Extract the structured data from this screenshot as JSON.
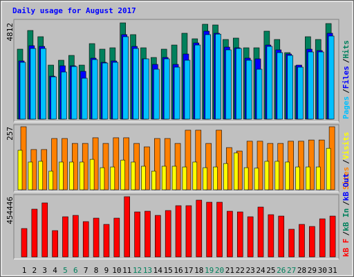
{
  "chart_data": [
    {
      "type": "bar",
      "title": "Daily usage for August 2017",
      "title_color": "#0000ff",
      "ylim": [
        0,
        4812
      ],
      "yticks": [
        4812
      ],
      "series": [
        {
          "name": "Pages",
          "color": "#00c0ff",
          "values": [
            2839,
            3531,
            3531,
            2112,
            2354,
            2631,
            2043,
            2977,
            2804,
            2839,
            4120,
            3531,
            3012,
            2493,
            3012,
            2597,
            2943,
            3704,
            4224,
            4250,
            3462,
            3531,
            2943,
            2493,
            3635,
            3324,
            3185,
            2597,
            3358,
            3358,
            4154
          ]
        },
        {
          "name": "Files",
          "color": "#0000ff",
          "values": [
            2908,
            3670,
            3635,
            2146,
            2666,
            2666,
            2389,
            3047,
            2839,
            2908,
            4224,
            3635,
            3012,
            2735,
            3081,
            2735,
            3254,
            3808,
            4397,
            4293,
            3600,
            3566,
            3047,
            3012,
            3704,
            3462,
            3254,
            2700,
            3497,
            3427,
            4293
          ]
        },
        {
          "name": "Hits",
          "color": "#00805c",
          "values": [
            3497,
            4431,
            4120,
            2700,
            2943,
            3185,
            2700,
            3774,
            3497,
            3566,
            4812,
            4224,
            3566,
            3081,
            3497,
            3704,
            4293,
            4016,
            4743,
            4708,
            3981,
            4051,
            3566,
            3566,
            4397,
            3981,
            3324,
            2666,
            4120,
            3981,
            4778
          ]
        }
      ],
      "legend_separator": "/"
    },
    {
      "type": "bar",
      "ylim": [
        0,
        257
      ],
      "yticks": [
        257
      ],
      "series": [
        {
          "name": "Sites",
          "color": "#ff8000",
          "values": [
            257,
            164,
            164,
            209,
            209,
            189,
            189,
            212,
            189,
            212,
            212,
            189,
            175,
            209,
            209,
            189,
            243,
            243,
            189,
            243,
            172,
            158,
            198,
            198,
            189,
            189,
            198,
            198,
            203,
            203,
            257
          ]
        },
        {
          "name": "Visits",
          "color": "#ffff00",
          "values": [
            161,
            113,
            116,
            76,
            113,
            113,
            113,
            124,
            90,
            93,
            121,
            113,
            96,
            76,
            96,
            96,
            93,
            113,
            90,
            93,
            107,
            150,
            90,
            88,
            116,
            116,
            113,
            93,
            93,
            93,
            169
          ]
        }
      ],
      "legend_separator": "/"
    },
    {
      "type": "bar",
      "ylim": [
        0,
        454446
      ],
      "yticks": [
        454446
      ],
      "series": [
        {
          "name": "kB F",
          "color": "#ff0000",
          "values": [
            214164,
            360422,
            407433,
            198493,
            302963,
            313410,
            266399,
            292516,
            245505,
            292516,
            454446,
            339528,
            344751,
            313410,
            349975,
            386539,
            386539,
            428327,
            412657,
            412657,
            344751,
            339528,
            302963,
            376092,
            318634,
            308187,
            208940,
            245505,
            229834,
            287293,
            308187
          ]
        },
        {
          "name": "kB In",
          "color": "#00805c"
        },
        {
          "name": "kB Out",
          "color": "#0000ff"
        }
      ],
      "legend_separator": "/",
      "categories": [
        "1",
        "2",
        "3",
        "4",
        "5",
        "6",
        "7",
        "8",
        "9",
        "10",
        "11",
        "12",
        "13",
        "14",
        "15",
        "16",
        "17",
        "18",
        "19",
        "20",
        "21",
        "22",
        "23",
        "24",
        "25",
        "26",
        "27",
        "28",
        "29",
        "30",
        "31"
      ],
      "category_colors": [
        "#000000",
        "#000000",
        "#000000",
        "#000000",
        "#00805c",
        "#00805c",
        "#000000",
        "#000000",
        "#000000",
        "#000000",
        "#000000",
        "#00805c",
        "#00805c",
        "#000000",
        "#000000",
        "#000000",
        "#000000",
        "#000000",
        "#00805c",
        "#00805c",
        "#000000",
        "#000000",
        "#000000",
        "#000000",
        "#000000",
        "#00805c",
        "#00805c",
        "#000000",
        "#000000",
        "#000000",
        "#000000"
      ]
    }
  ]
}
